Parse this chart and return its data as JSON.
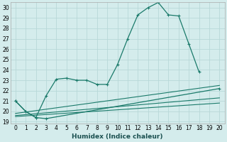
{
  "xlabel": "Humidex (Indice chaleur)",
  "bg_color": "#d4ecec",
  "grid_color": "#b8d8d8",
  "line_color": "#1a7a6a",
  "xlim": [
    -0.5,
    20.5
  ],
  "ylim": [
    18.8,
    30.5
  ],
  "xticks": [
    0,
    1,
    2,
    3,
    4,
    5,
    6,
    7,
    8,
    9,
    10,
    11,
    12,
    13,
    14,
    15,
    16,
    17,
    18,
    19,
    20
  ],
  "yticks": [
    19,
    20,
    21,
    22,
    23,
    24,
    25,
    26,
    27,
    28,
    29,
    30
  ],
  "series": [
    {
      "x": [
        0,
        1,
        2,
        3,
        4,
        5,
        6,
        7,
        8,
        9,
        10,
        11,
        12,
        13,
        14,
        15,
        16,
        17,
        18
      ],
      "y": [
        21.0,
        20.0,
        19.4,
        21.5,
        23.1,
        23.2,
        23.0,
        23.0,
        22.6,
        22.6,
        24.5,
        27.0,
        29.3,
        30.0,
        30.5,
        29.3,
        29.2,
        26.5,
        23.8
      ],
      "marker": true
    },
    {
      "x": [
        0,
        1,
        2,
        3,
        20
      ],
      "y": [
        21.0,
        20.0,
        19.4,
        19.3,
        22.2
      ],
      "marker": true,
      "is_secondary": true
    },
    {
      "x": [
        0,
        20
      ],
      "y": [
        19.8,
        22.5
      ],
      "marker": false
    },
    {
      "x": [
        0,
        20
      ],
      "y": [
        19.6,
        21.3
      ],
      "marker": false
    },
    {
      "x": [
        0,
        20
      ],
      "y": [
        19.5,
        20.8
      ],
      "marker": false
    }
  ]
}
